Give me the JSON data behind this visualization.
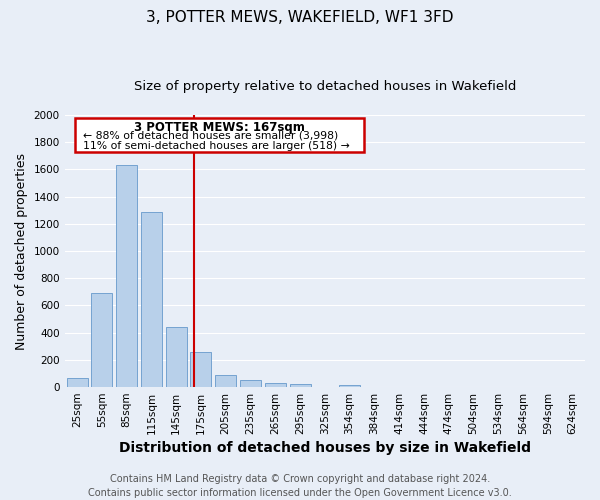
{
  "title": "3, POTTER MEWS, WAKEFIELD, WF1 3FD",
  "subtitle": "Size of property relative to detached houses in Wakefield",
  "xlabel": "Distribution of detached houses by size in Wakefield",
  "ylabel": "Number of detached properties",
  "bar_color": "#b8d0ea",
  "bar_edge_color": "#6699cc",
  "categories": [
    "25sqm",
    "55sqm",
    "85sqm",
    "115sqm",
    "145sqm",
    "175sqm",
    "205sqm",
    "235sqm",
    "265sqm",
    "295sqm",
    "325sqm",
    "354sqm",
    "384sqm",
    "414sqm",
    "444sqm",
    "474sqm",
    "504sqm",
    "534sqm",
    "564sqm",
    "594sqm",
    "624sqm"
  ],
  "values": [
    65,
    695,
    1635,
    1285,
    440,
    255,
    90,
    50,
    30,
    20,
    0,
    15,
    0,
    0,
    0,
    0,
    0,
    0,
    0,
    0,
    0
  ],
  "ylim": [
    0,
    2000
  ],
  "yticks": [
    0,
    200,
    400,
    600,
    800,
    1000,
    1200,
    1400,
    1600,
    1800,
    2000
  ],
  "marker_label": "3 POTTER MEWS: 167sqm",
  "annotation_line1": "← 88% of detached houses are smaller (3,998)",
  "annotation_line2": "11% of semi-detached houses are larger (518) →",
  "footer_line1": "Contains HM Land Registry data © Crown copyright and database right 2024.",
  "footer_line2": "Contains public sector information licensed under the Open Government Licence v3.0.",
  "background_color": "#e8eef7",
  "plot_bg_color": "#e8eef7",
  "grid_color": "#ffffff",
  "title_fontsize": 11,
  "subtitle_fontsize": 9.5,
  "axis_label_fontsize": 9,
  "tick_fontsize": 7.5,
  "footer_fontsize": 7
}
